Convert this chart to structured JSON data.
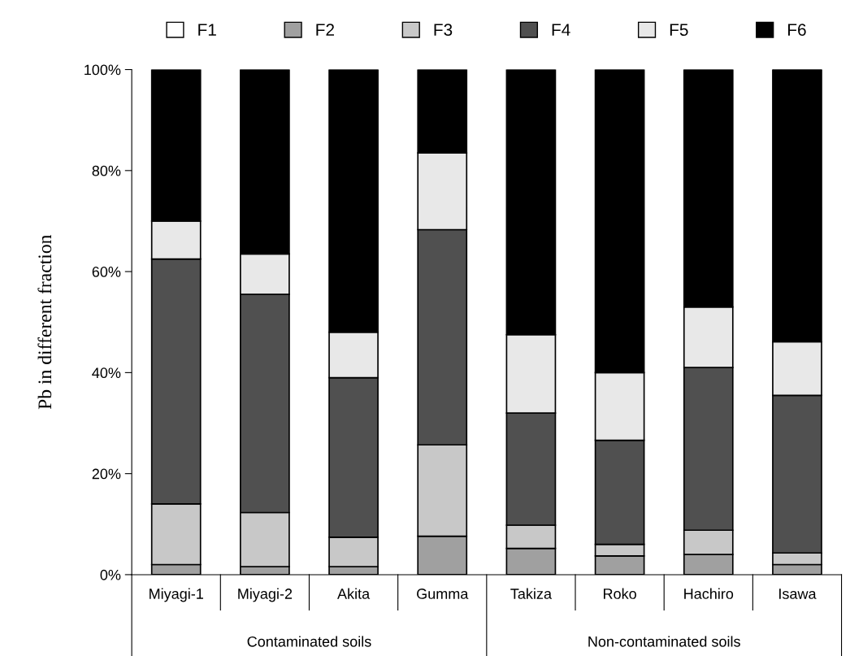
{
  "chart_data": {
    "type": "bar",
    "stacked": true,
    "ylabel": "Pb in different fraction",
    "categories": [
      "Miyagi-1",
      "Miyagi-2",
      "Akita",
      "Gumma",
      "Takiza",
      "Roko",
      "Hachiro",
      "Isawa"
    ],
    "series": [
      {
        "name": "F1",
        "color": "#ffffff",
        "values": [
          null,
          null,
          null,
          null,
          null,
          null,
          null,
          null
        ]
      },
      {
        "name": "F2",
        "color": "#a0a0a0",
        "values": [
          2.0,
          1.6,
          1.6,
          7.6,
          5.2,
          3.7,
          4.0,
          2.0
        ]
      },
      {
        "name": "F3",
        "color": "#c8c8c8",
        "values": [
          12.0,
          10.7,
          5.8,
          18.1,
          4.6,
          2.3,
          4.8,
          2.3
        ]
      },
      {
        "name": "F4",
        "color": "#505050",
        "values": [
          48.5,
          43.2,
          31.6,
          42.6,
          22.2,
          20.6,
          32.2,
          31.2
        ]
      },
      {
        "name": "F5",
        "color": "#e8e8e8",
        "values": [
          7.5,
          8.0,
          9.0,
          15.2,
          15.5,
          13.4,
          12.0,
          10.6
        ]
      },
      {
        "name": "F6",
        "color": "#000000",
        "values": [
          30.0,
          36.5,
          52.0,
          16.5,
          52.5,
          60.0,
          47.0,
          54.0
        ]
      }
    ],
    "ylim": [
      0,
      100
    ],
    "yticks": [
      {
        "value": 0,
        "label": "0%"
      },
      {
        "value": 20,
        "label": "20%"
      },
      {
        "value": 40,
        "label": "40%"
      },
      {
        "value": 60,
        "label": "60%"
      },
      {
        "value": 80,
        "label": "80%"
      },
      {
        "value": 100,
        "label": "100%"
      }
    ],
    "annotations": [
      "Contaminated soils",
      "Non-contaminated soils"
    ],
    "legend": "top",
    "grid": false
  }
}
